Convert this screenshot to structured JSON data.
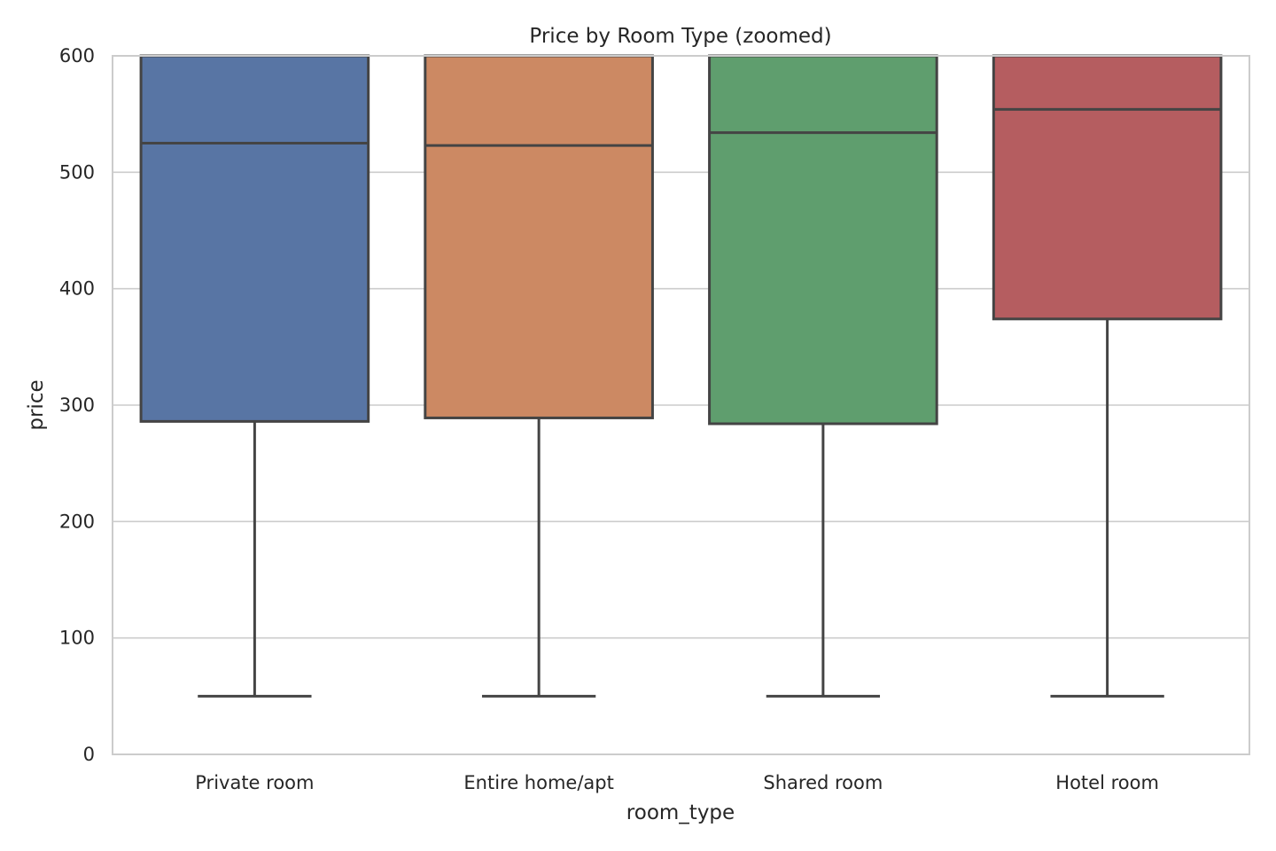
{
  "chart_data": {
    "type": "box",
    "title": "Price by Room Type (zoomed)",
    "xlabel": "room_type",
    "ylabel": "price",
    "ylim": [
      0,
      600
    ],
    "yticks": [
      0,
      100,
      200,
      300,
      400,
      500,
      600
    ],
    "grid": "horizontal",
    "categories": [
      "Private room",
      "Entire home/apt",
      "Shared room",
      "Hotel room"
    ],
    "colors": [
      "#5875a4",
      "#cc8963",
      "#5f9e6e",
      "#b55d60"
    ],
    "line_color": "#444444",
    "boxes": [
      {
        "category": "Private room",
        "whisker_low": 50,
        "q1": 286,
        "median": 525,
        "q3": 600
      },
      {
        "category": "Entire home/apt",
        "whisker_low": 50,
        "q1": 289,
        "median": 523,
        "q3": 600
      },
      {
        "category": "Shared room",
        "whisker_low": 50,
        "q1": 284,
        "median": 534,
        "q3": 600
      },
      {
        "category": "Hotel room",
        "whisker_low": 50,
        "q1": 374,
        "median": 554,
        "q3": 600
      }
    ]
  }
}
